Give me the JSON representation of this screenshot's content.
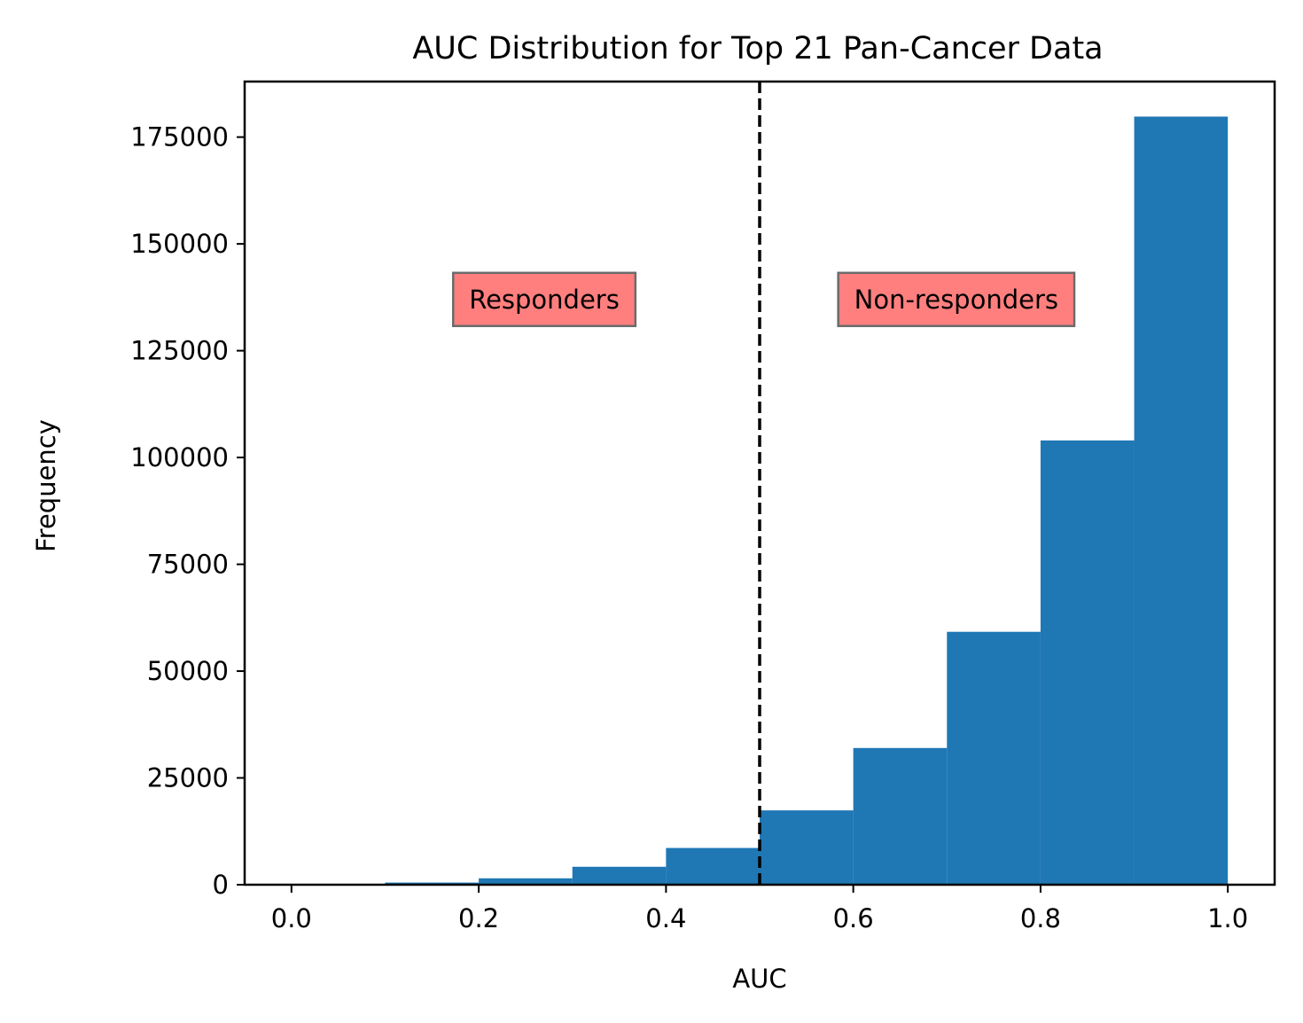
{
  "chart_data": {
    "type": "bar",
    "title": "AUC Distribution for Top 21 Pan-Cancer Data",
    "xlabel": "AUC",
    "ylabel": "Frequency",
    "xlim": [
      -0.05,
      1.05
    ],
    "ylim": [
      0,
      188000
    ],
    "x_ticks": [
      0.0,
      0.2,
      0.4,
      0.6,
      0.8,
      1.0
    ],
    "x_tick_labels": [
      "0.0",
      "0.2",
      "0.4",
      "0.6",
      "0.8",
      "1.0"
    ],
    "y_ticks": [
      0,
      25000,
      50000,
      75000,
      100000,
      125000,
      150000,
      175000
    ],
    "y_tick_labels": [
      "0",
      "25000",
      "50000",
      "75000",
      "100000",
      "125000",
      "150000",
      "175000"
    ],
    "bin_edges": [
      0.0,
      0.1,
      0.2,
      0.3,
      0.4,
      0.5,
      0.6,
      0.7,
      0.8,
      0.9,
      1.0
    ],
    "values": [
      100,
      500,
      1500,
      4200,
      8600,
      17400,
      32000,
      59200,
      104000,
      179800
    ],
    "bar_color": "#1f77b4",
    "grid": false,
    "threshold": {
      "x": 0.5,
      "style": "dashed",
      "color": "#000000"
    },
    "annotations": [
      {
        "text": "Responders",
        "x": 0.27,
        "y": 137000,
        "box_color": "#ff7f7f"
      },
      {
        "text": "Non-responders",
        "x": 0.71,
        "y": 137000,
        "box_color": "#ff7f7f"
      }
    ]
  }
}
